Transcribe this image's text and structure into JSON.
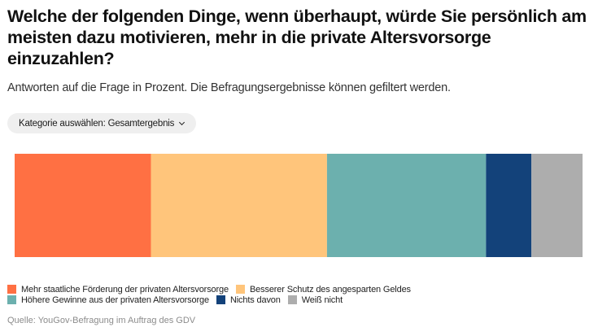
{
  "header": {
    "title_lines": [
      "Welche der folgenden Dinge, wenn überhaupt, würde Sie persönlich am",
      "meisten dazu motivieren, mehr in die private Altersvorsorge",
      "einzuzahlen?"
    ],
    "subtitle": "Antworten auf die Frage in Prozent. Die Befragungsergebnisse können gefiltert werden."
  },
  "filter": {
    "label": "Kategorie auswählen: Gesamtergebnis",
    "icon": "chevron-down-icon"
  },
  "chart_data": {
    "type": "bar",
    "orientation": "horizontal-stacked-100",
    "title": "Welche der folgenden Dinge, wenn überhaupt, würde Sie persönlich am meisten dazu motivieren, mehr in die private Altersvorsorge einzuzahlen?",
    "xlabel": "",
    "ylabel": "",
    "xlim": [
      0,
      100
    ],
    "grid": false,
    "legend_position": "bottom",
    "categories": [
      "Gesamtergebnis"
    ],
    "series": [
      {
        "name": "Mehr staatliche Förderung der privaten Altersvorsorge",
        "values": [
          24
        ],
        "color": "#ff7043"
      },
      {
        "name": "Besserer Schutz des angesparten Geldes",
        "values": [
          31
        ],
        "color": "#ffc57b"
      },
      {
        "name": "Höhere Gewinne aus der privaten Altersvorsorge",
        "values": [
          28
        ],
        "color": "#6cb0ae"
      },
      {
        "name": "Nichts davon",
        "values": [
          8
        ],
        "color": "#13427a"
      },
      {
        "name": "Weiß nicht",
        "values": [
          9
        ],
        "color": "#adadad"
      }
    ]
  },
  "legend": {
    "rows": [
      [
        0,
        1
      ],
      [
        2,
        3,
        4
      ]
    ]
  },
  "footer": {
    "source": "Quelle: YouGov-Befragung im Auftrag des GDV"
  }
}
